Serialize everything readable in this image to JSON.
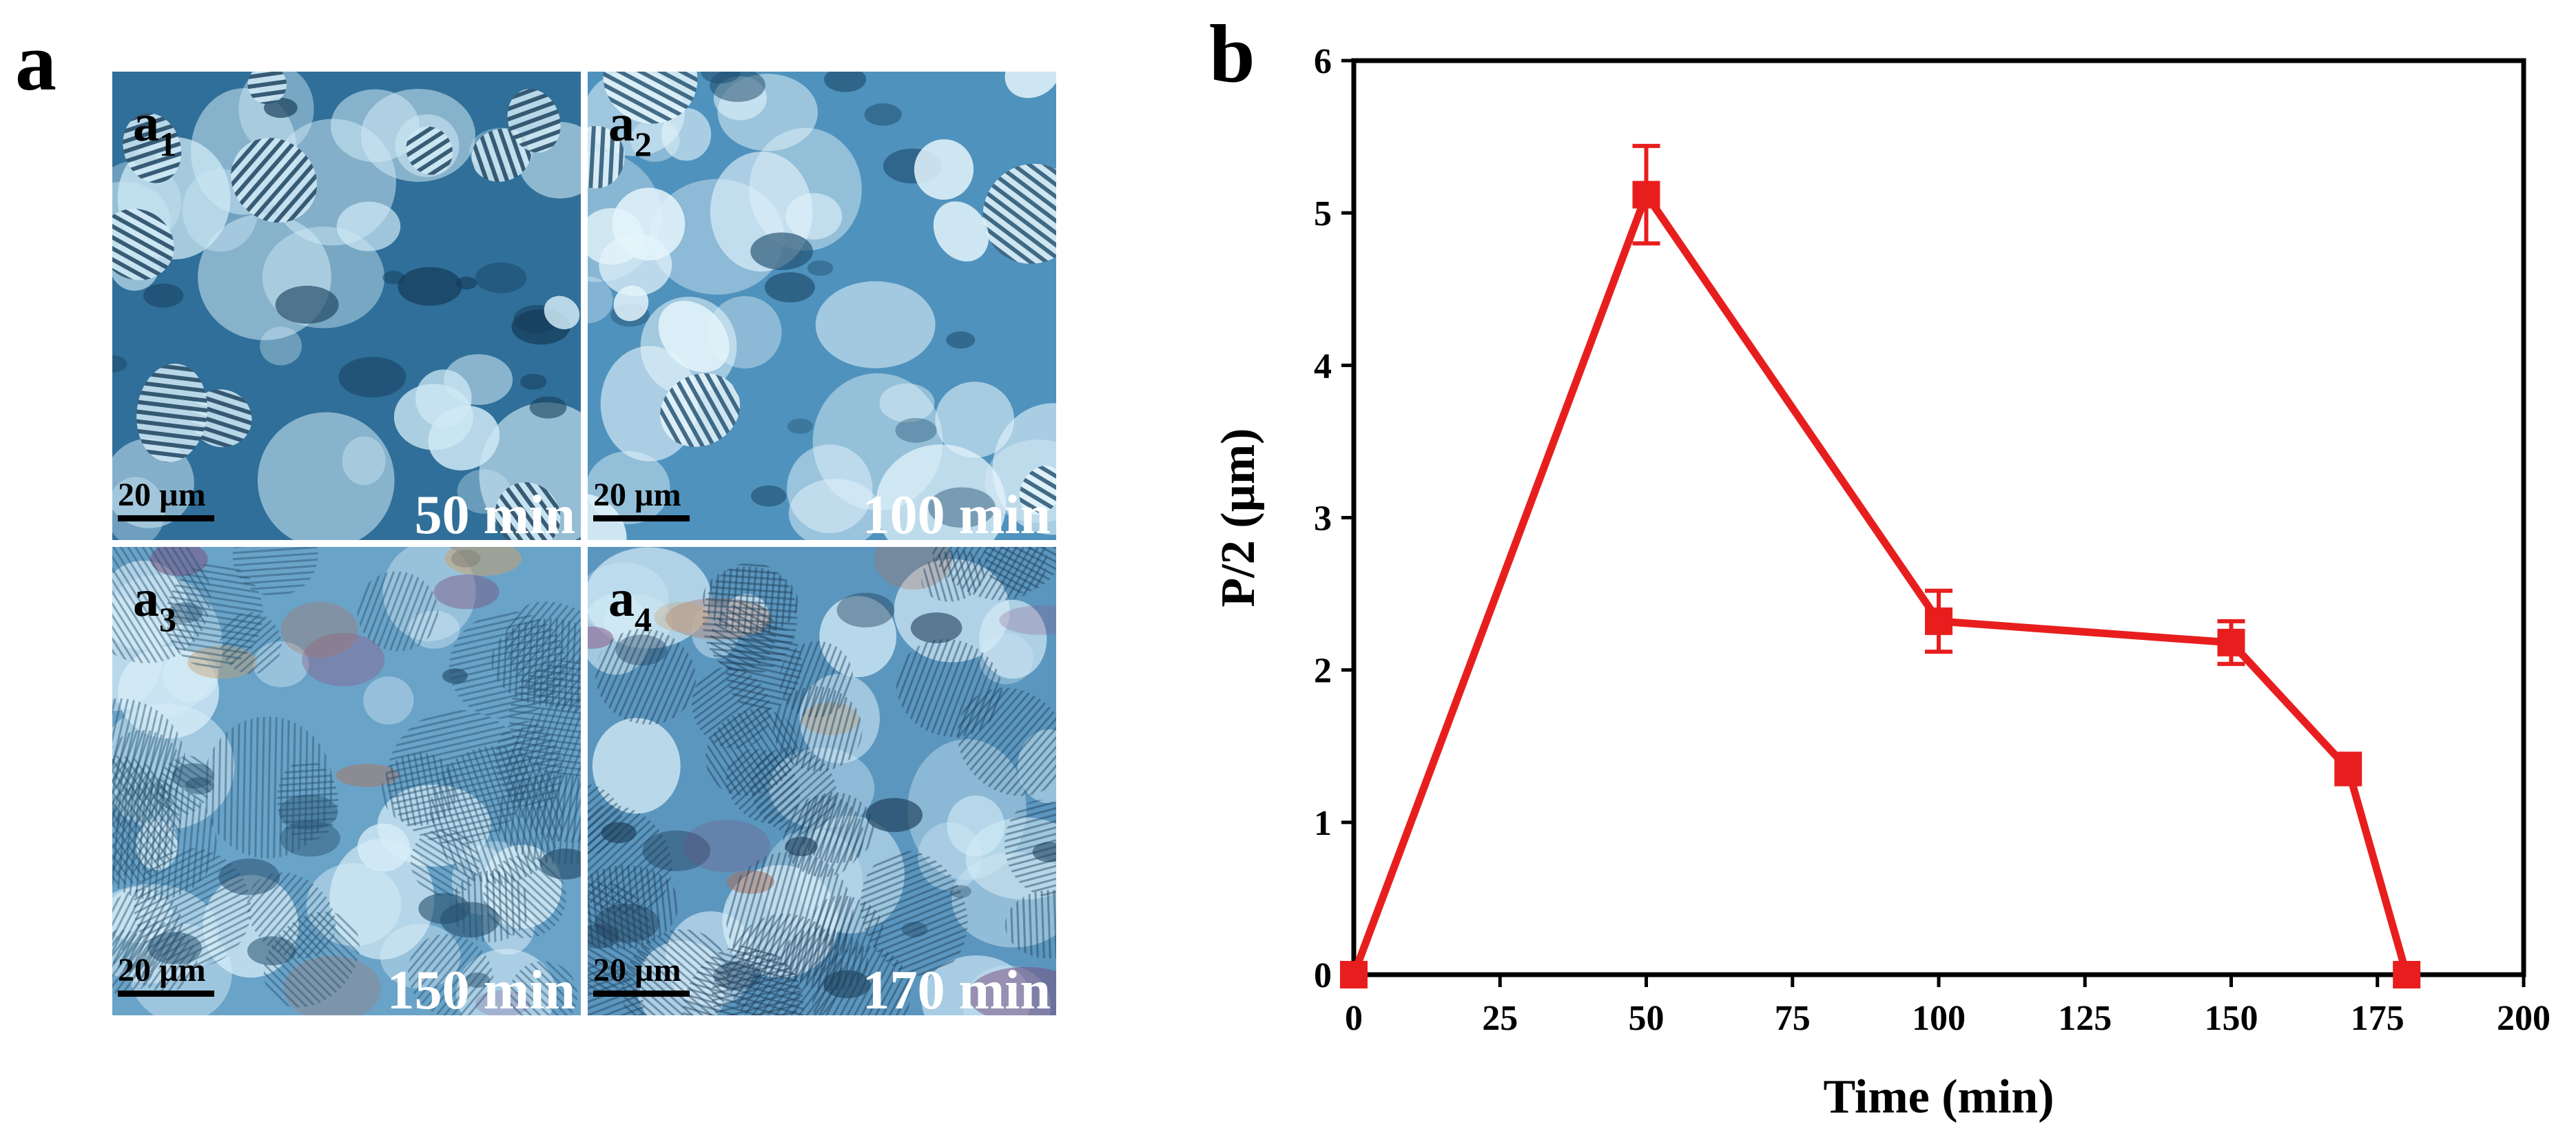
{
  "figure": {
    "panel_a_label": "a",
    "panel_b_label": "b",
    "micrographs": [
      {
        "id": "a1",
        "letter": "a",
        "sub": "1",
        "time": "50 min",
        "scale": "20 µm",
        "palette": "blue-stripes"
      },
      {
        "id": "a2",
        "letter": "a",
        "sub": "2",
        "time": "100 min",
        "scale": "20 µm",
        "palette": "blue-bright"
      },
      {
        "id": "a3",
        "letter": "a",
        "sub": "3",
        "time": "150 min",
        "scale": "20 µm",
        "palette": "fingerprint-warm"
      },
      {
        "id": "a4",
        "letter": "a",
        "sub": "4",
        "time": "170 min",
        "scale": "20 µm",
        "palette": "fingerprint-dense"
      }
    ]
  },
  "colors": {
    "series": "#e81e1e",
    "axis": "#000000",
    "micro_base": "#3c7fa8",
    "micro_light": "#cfe9f5",
    "micro_dark": "#163a55"
  },
  "chart_data": {
    "type": "line",
    "title": "",
    "xlabel": "Time (min)",
    "ylabel": "P/2 (µm)",
    "xlim": [
      0,
      200
    ],
    "ylim": [
      0,
      6
    ],
    "xticks": [
      0,
      25,
      50,
      75,
      100,
      125,
      150,
      175,
      200
    ],
    "yticks": [
      0,
      1,
      2,
      3,
      4,
      5,
      6
    ],
    "series": [
      {
        "name": "P/2",
        "color": "#e81e1e",
        "marker": "square",
        "x": [
          0,
          50,
          100,
          150,
          170,
          180
        ],
        "y": [
          0,
          5.12,
          2.32,
          2.18,
          1.35,
          0
        ],
        "err": [
          0,
          0.32,
          0.2,
          0.14,
          0.1,
          0
        ]
      }
    ],
    "grid": false,
    "legend": "none"
  }
}
